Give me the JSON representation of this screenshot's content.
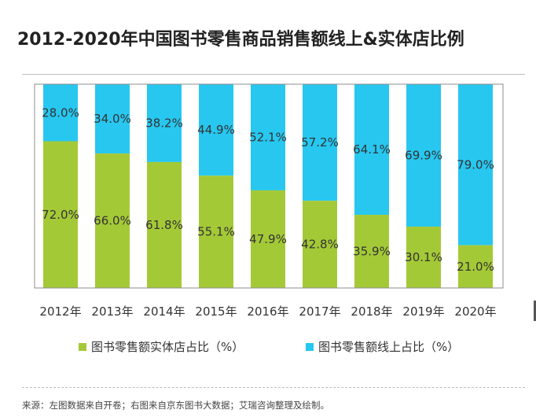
{
  "title": "2012-2020年中国图书零售商品销售额线上&实体店比例",
  "colors": {
    "offline": "#a4c937",
    "online": "#27c7f0",
    "frame": "#8c8c8c",
    "text": "#333333"
  },
  "legend": {
    "offline": "图书零售额实体店占比（%）",
    "online": "图书零售额线上占比（%）"
  },
  "source": "来源：左图数据来自开卷；右图来自京东图书大数据；艾瑞咨询整理及绘制。",
  "chart_data": {
    "type": "bar",
    "stacked": true,
    "normalized_percent": true,
    "title": "2012-2020年中国图书零售商品销售额线上&实体店比例",
    "categories": [
      "2012年",
      "2013年",
      "2014年",
      "2015年",
      "2016年",
      "2017年",
      "2018年",
      "2019年",
      "2020年"
    ],
    "series": [
      {
        "name": "图书零售额实体店占比（%）",
        "values": [
          72.0,
          66.0,
          61.8,
          55.1,
          47.9,
          42.8,
          35.9,
          30.1,
          21.0
        ],
        "labels": [
          "72.0%",
          "66.0%",
          "61.8%",
          "55.1%",
          "47.9%",
          "42.8%",
          "35.9%",
          "30.1%",
          "21.0%"
        ]
      },
      {
        "name": "图书零售额线上占比（%）",
        "values": [
          28.0,
          34.0,
          38.2,
          44.9,
          52.1,
          57.2,
          64.1,
          69.9,
          79.0
        ],
        "labels": [
          "28.0%",
          "34.0%",
          "38.2%",
          "44.9%",
          "52.1%",
          "57.2%",
          "64.1%",
          "69.9%",
          "79.0%"
        ]
      }
    ],
    "ylim": [
      0,
      100
    ],
    "xlabel": "",
    "ylabel": "",
    "legend": "bottom"
  }
}
